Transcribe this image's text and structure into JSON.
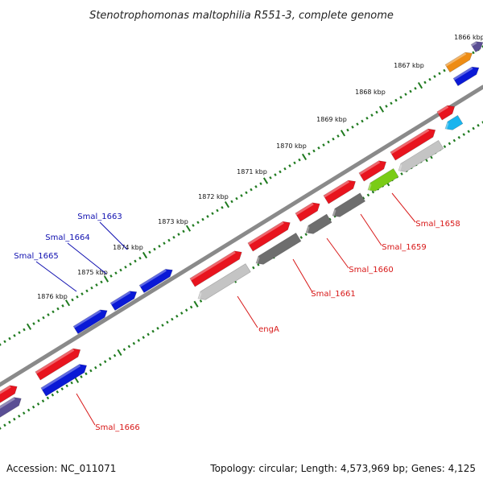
{
  "title": "Stenotrophomonas maltophilia R551-3, complete genome",
  "footer": {
    "accession": "Accession: NC_011071",
    "summary": "Topology: circular; Length: 4,573,969 bp; Genes: 4,125"
  },
  "kbp_ticks": [
    "1866 kbp",
    "1867 kbp",
    "1868 kbp",
    "1869 kbp",
    "1870 kbp",
    "1871 kbp",
    "1872 kbp",
    "1873 kbp",
    "1874 kbp",
    "1875 kbp",
    "1876 kbp"
  ],
  "colors": {
    "red": "#e8141e",
    "blue": "#0a19d6",
    "gray_dark": "#6e6e6e",
    "gray_light": "#c4c4c4",
    "green": "#7acc16",
    "cyan": "#19b4ee",
    "orange": "#ee8c14",
    "purple": "#5a4e94",
    "backbone": "#8a8a8a",
    "tick": "#1f7a1f",
    "label_red": "#d81818",
    "label_blue": "#1010b0"
  },
  "blue_labels": [
    "Smal_1663",
    "Smal_1664",
    "Smal_1665"
  ],
  "red_labels": [
    "Smal_1658",
    "Smal_1659",
    "Smal_1660",
    "Smal_1661",
    "engA",
    "Smal_1666"
  ]
}
